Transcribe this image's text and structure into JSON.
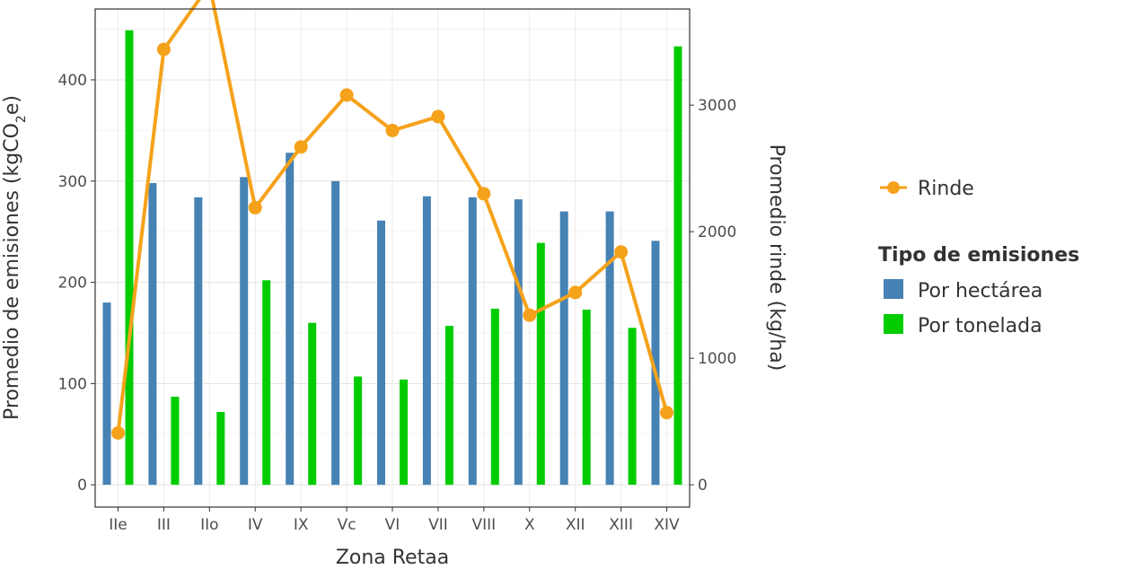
{
  "chart_data": {
    "type": "bar",
    "xlabel": "Zona Retaa",
    "ylabel_left": "Promedio de emisiones (kgCO",
    "ylabel_left_sub": "2",
    "ylabel_left_end": "e)",
    "ylabel_right": "Promedio rinde (kg/ha)",
    "categories": [
      "IIe",
      "III",
      "IIo",
      "IV",
      "IX",
      "Vc",
      "VI",
      "VII",
      "VIII",
      "X",
      "XII",
      "XIII",
      "XIV"
    ],
    "ylim_left": [
      -22,
      470
    ],
    "ylim_right": [
      -176,
      3760
    ],
    "yticks_left": [
      "0",
      "100",
      "200",
      "300",
      "400"
    ],
    "yticks_right": [
      "0",
      "1000",
      "2000",
      "3000",
      "4000"
    ],
    "grid": true,
    "legend": "right",
    "series": [
      {
        "name": "Por hectárea",
        "type": "bar",
        "axis": "left",
        "color": "#4682B4",
        "values": [
          180,
          298,
          284,
          304,
          328,
          300,
          261,
          285,
          284,
          282,
          270,
          270,
          241
        ]
      },
      {
        "name": "Por tonelada",
        "type": "bar",
        "axis": "left",
        "color": "#00CC00",
        "values": [
          449,
          87,
          72,
          202,
          160,
          107,
          104,
          157,
          174,
          239,
          173,
          155,
          433
        ]
      },
      {
        "name": "Rinde",
        "type": "line",
        "axis": "right",
        "color": "#F5A21B",
        "values": [
          410,
          3440,
          3950,
          2190,
          2670,
          3080,
          2800,
          2910,
          2300,
          1340,
          1520,
          1840,
          570
        ]
      }
    ],
    "legend_line_label": "Rinde",
    "legend_title": "Tipo de emisiones",
    "legend_items": [
      "Por hectárea",
      "Por tonelada"
    ]
  }
}
